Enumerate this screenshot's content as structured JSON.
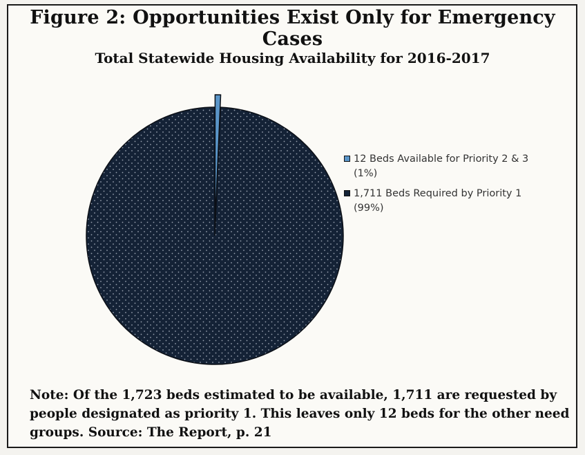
{
  "figure_title": "Figure 2:  Opportunities Exist Only for Emergency Cases",
  "note": "Note:  Of the 1,723 beds estimated to be available, 1,711 are requested by people designated as priority 1.  This leaves only 12 beds for the other need groups. Source:  The Report, p. 21",
  "colors": {
    "slice_available": "#5a95c8",
    "slice_required": "#142236",
    "dots": "#9aa3b0"
  },
  "chart_data": {
    "type": "pie",
    "title": "Total Statewide Housing Availability for 2016-2017",
    "slices": [
      {
        "label": "12 Beds Available for Priority 2 & 3 (1%)",
        "value": 12,
        "percent": 1,
        "color": "#5a95c8",
        "exploded": true
      },
      {
        "label": "1,711 Beds Required by Priority 1 (99%)",
        "value": 1711,
        "percent": 99,
        "color": "#142236",
        "exploded": false
      }
    ],
    "legend_position": "right"
  }
}
